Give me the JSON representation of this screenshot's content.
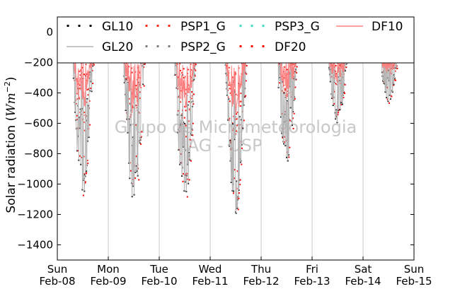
{
  "chart_data": {
    "type": "line",
    "ylabel_text": "Solar radiation (",
    "ylabel_unit": "Wm",
    "ylabel_exp": "−2",
    "ylabel_close": ")",
    "ylim": [
      -1500,
      100
    ],
    "yticks": [
      0,
      -200,
      -400,
      -600,
      -800,
      -1000,
      -1200,
      -1400
    ],
    "xlim": [
      "2015-02-08",
      "2015-02-15"
    ],
    "xtick_days": [
      "Sun",
      "Mon",
      "Tue",
      "Wed",
      "Thu",
      "Fri",
      "Sat",
      "Sun"
    ],
    "xtick_dates": [
      "Feb-08",
      "Feb-09",
      "Feb-10",
      "Feb-11",
      "Feb-12",
      "Feb-13",
      "Feb-14",
      "Feb-15"
    ],
    "grid": "vertical-daily",
    "legend_position": "top",
    "watermark": [
      "Grupo de Micrometeorologia",
      "IAG - USP"
    ],
    "series": [
      {
        "name": "GL10",
        "style": "dotted-markers",
        "color": "#000000"
      },
      {
        "name": "GL20",
        "style": "line",
        "color": "#b4b4b4"
      },
      {
        "name": "PSP1_G",
        "style": "dotted-markers",
        "color": "#ff2a1f"
      },
      {
        "name": "PSP2_G",
        "style": "dotted-markers",
        "color": "#7a7a7a"
      },
      {
        "name": "PSP3_G",
        "style": "dotted-markers",
        "color": "#40e0c0"
      },
      {
        "name": "DF20",
        "style": "dotted-markers",
        "color": "#ff0000"
      },
      {
        "name": "DF10",
        "style": "line",
        "color": "#ff8080"
      }
    ],
    "daily_minimum": [
      {
        "day": "2015-02-08",
        "min": -1090
      },
      {
        "day": "2015-02-09",
        "min": -1150
      },
      {
        "day": "2015-02-10",
        "min": -1140
      },
      {
        "day": "2015-02-11",
        "min": -1200
      },
      {
        "day": "2015-02-12",
        "min": -870
      },
      {
        "day": "2015-02-13",
        "min": -600
      },
      {
        "day": "2015-02-14",
        "min": -460
      }
    ]
  }
}
